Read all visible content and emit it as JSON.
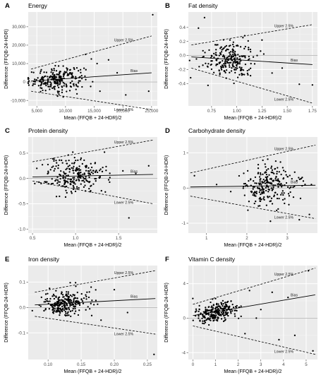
{
  "chart_data": [
    {
      "type": "scatter",
      "panel_letter": "A",
      "title": "Energy",
      "xlabel": "Mean (FFQB + 24-HDR)/2",
      "ylabel": "Difference (FFQB-24-HDR)",
      "xlim": [
        3500,
        26000
      ],
      "ylim": [
        -13000,
        38000
      ],
      "xticks": [
        5000,
        10000,
        15000,
        20000,
        25000
      ],
      "xtick_labels": [
        "5,000",
        "10,000",
        "15,000",
        "20,000",
        "25,000"
      ],
      "yticks": [
        -10000,
        0,
        10000,
        20000,
        30000
      ],
      "ytick_labels": [
        "-10,000",
        "0",
        "10,000",
        "20,000",
        "30,000"
      ],
      "bias": [
        [
          4000,
          500
        ],
        [
          25000,
          5000
        ]
      ],
      "upper": [
        [
          4000,
          7000
        ],
        [
          25000,
          25000
        ]
      ],
      "lower": [
        [
          4000,
          -5000
        ],
        [
          25000,
          -15000
        ]
      ],
      "labels": {
        "upper": "Upper 2.5%",
        "bias": "Bias",
        "lower": "Lower 2.5%"
      },
      "cluster": {
        "cx": 8500,
        "sx": 2400,
        "cy": 1500,
        "sy": 3200,
        "n": 230
      },
      "outliers": [
        [
          25200,
          36500
        ],
        [
          13500,
          15000
        ],
        [
          15500,
          10000
        ],
        [
          17500,
          12000
        ],
        [
          19000,
          5000
        ],
        [
          20500,
          -7000
        ],
        [
          24500,
          -5000
        ],
        [
          16000,
          -5000
        ],
        [
          14500,
          12500
        ]
      ]
    },
    {
      "type": "scatter",
      "panel_letter": "B",
      "title": "Fat density",
      "xlabel": "Mean (FFQB + 24-HDR)/2",
      "ylabel": "Difference (FFQB-24-HDR)",
      "xlim": [
        0.52,
        1.8
      ],
      "ylim": [
        -0.72,
        0.62
      ],
      "xticks": [
        0.75,
        1.0,
        1.25,
        1.5,
        1.75
      ],
      "xtick_labels": [
        "0.75",
        "1.00",
        "1.25",
        "1.50",
        "1.75"
      ],
      "yticks": [
        -0.4,
        -0.2,
        0.0,
        0.2,
        0.4
      ],
      "ytick_labels": [
        "-0.4",
        "-0.2",
        "0.0",
        "0.2",
        "0.4"
      ],
      "bias": [
        [
          0.55,
          -0.02
        ],
        [
          1.75,
          -0.13
        ]
      ],
      "upper": [
        [
          0.55,
          0.15
        ],
        [
          1.75,
          0.44
        ]
      ],
      "lower": [
        [
          0.55,
          -0.18
        ],
        [
          1.75,
          -0.68
        ]
      ],
      "labels": {
        "upper": "Upper 2.5%",
        "bias": "Bias",
        "lower": "Lower 2.5%"
      },
      "cluster": {
        "cx": 0.93,
        "sx": 0.12,
        "cy": -0.04,
        "sy": 0.13,
        "n": 230
      },
      "outliers": [
        [
          0.62,
          0.39
        ],
        [
          0.68,
          0.54
        ],
        [
          1.62,
          -0.41
        ],
        [
          1.75,
          -0.42
        ],
        [
          1.35,
          -0.25
        ],
        [
          1.45,
          -0.18
        ],
        [
          0.6,
          -0.05
        ],
        [
          1.25,
          0.22
        ]
      ]
    },
    {
      "type": "scatter",
      "panel_letter": "C",
      "title": "Protein density",
      "xlabel": "Mean (FFQB + 24-HDR)/2",
      "ylabel": "Difference (FFQB-24-HDR)",
      "xlim": [
        0.45,
        1.95
      ],
      "ylim": [
        -1.08,
        0.82
      ],
      "xticks": [
        0.5,
        1.0,
        1.5
      ],
      "xtick_labels": [
        "0.5",
        "1.0",
        "1.5"
      ],
      "yticks": [
        -1.0,
        -0.5,
        0.0,
        0.5
      ],
      "ytick_labels": [
        "-1.0",
        "-0.5",
        "0.0",
        "0.5"
      ],
      "bias": [
        [
          0.5,
          0.03
        ],
        [
          1.9,
          0.08
        ]
      ],
      "upper": [
        [
          0.5,
          0.33
        ],
        [
          1.9,
          0.76
        ]
      ],
      "lower": [
        [
          0.5,
          -0.05
        ],
        [
          1.9,
          -0.5
        ]
      ],
      "labels": {
        "upper": "Upper 2.5%",
        "bias": "Bias",
        "lower": "Lower 2.5%"
      },
      "cluster": {
        "cx": 1.0,
        "sx": 0.18,
        "cy": 0.04,
        "sy": 0.18,
        "n": 250
      },
      "outliers": [
        [
          1.62,
          -0.78
        ],
        [
          0.55,
          0.2
        ],
        [
          1.85,
          0.25
        ],
        [
          1.7,
          0.1
        ],
        [
          0.6,
          -0.1
        ],
        [
          1.55,
          0.15
        ]
      ]
    },
    {
      "type": "scatter",
      "panel_letter": "D",
      "title": "Carbohydrate density",
      "xlabel": "Mean (FFQB + 24-HDR)/2",
      "ylabel": "Difference (FFQB-24-HDR)",
      "xlim": [
        0.55,
        3.75
      ],
      "ylim": [
        -1.28,
        1.45
      ],
      "xticks": [
        1,
        2,
        3
      ],
      "xtick_labels": [
        "1",
        "2",
        "3"
      ],
      "yticks": [
        -1,
        0,
        1
      ],
      "ytick_labels": [
        "-1",
        "0",
        "1"
      ],
      "bias": [
        [
          0.6,
          0.03
        ],
        [
          3.7,
          0.08
        ]
      ],
      "upper": [
        [
          0.6,
          0.43
        ],
        [
          3.7,
          1.22
        ]
      ],
      "lower": [
        [
          0.6,
          -0.23
        ],
        [
          3.7,
          -0.87
        ]
      ],
      "labels": {
        "upper": "Upper 2.5%",
        "bias": "Bias",
        "lower": "Lower 2.5%"
      },
      "cluster": {
        "cx": 2.55,
        "sx": 0.32,
        "cy": 0.04,
        "sy": 0.3,
        "n": 240
      },
      "outliers": [
        [
          0.7,
          0.35
        ],
        [
          1.25,
          0.1
        ],
        [
          3.55,
          -0.75
        ],
        [
          3.6,
          0.1
        ],
        [
          1.6,
          -0.1
        ],
        [
          3.3,
          -0.9
        ]
      ]
    },
    {
      "type": "scatter",
      "panel_letter": "E",
      "title": "Iron density",
      "xlabel": "Mean (FFQB + 24-HDR)/2",
      "ylabel": "Difference (FFQB-24-HDR)",
      "xlim": [
        0.07,
        0.265
      ],
      "ylim": [
        -0.205,
        0.165
      ],
      "xticks": [
        0.1,
        0.15,
        0.2,
        0.25
      ],
      "xtick_labels": [
        "0.10",
        "0.15",
        "0.20",
        "0.25"
      ],
      "yticks": [
        -0.1,
        0.0,
        0.1
      ],
      "ytick_labels": [
        "-0.1",
        "0.0",
        "0.1"
      ],
      "bias": [
        [
          0.08,
          0.01
        ],
        [
          0.262,
          0.035
        ]
      ],
      "upper": [
        [
          0.08,
          0.06
        ],
        [
          0.262,
          0.145
        ]
      ],
      "lower": [
        [
          0.08,
          -0.035
        ],
        [
          0.262,
          -0.105
        ]
      ],
      "labels": {
        "upper": "Upper 2.5%",
        "bias": "Bias",
        "lower": "Lower 2.5%"
      },
      "cluster": {
        "cx": 0.125,
        "sx": 0.017,
        "cy": 0.02,
        "sy": 0.025,
        "n": 260
      },
      "outliers": [
        [
          0.26,
          -0.185
        ],
        [
          0.22,
          -0.02
        ],
        [
          0.2,
          0.07
        ],
        [
          0.18,
          -0.05
        ],
        [
          0.09,
          0.04
        ],
        [
          0.165,
          0.08
        ]
      ]
    },
    {
      "type": "scatter",
      "panel_letter": "F",
      "title": "Vitamin C density",
      "xlabel": "Mean (FFQB + 24-HDR)/2",
      "ylabel": "Difference (FFQB-24-HDR)",
      "xlim": [
        -0.2,
        5.5
      ],
      "ylim": [
        -4.8,
        6.1
      ],
      "xticks": [
        0,
        1,
        2,
        3,
        4,
        5
      ],
      "xtick_labels": [
        "0",
        "1",
        "2",
        "3",
        "4",
        "5"
      ],
      "yticks": [
        -4,
        0,
        4
      ],
      "ytick_labels": [
        "-4",
        "0",
        "4"
      ],
      "bias": [
        [
          0,
          0.3
        ],
        [
          5.4,
          2.7
        ]
      ],
      "upper": [
        [
          0,
          1.6
        ],
        [
          5.4,
          5.8
        ]
      ],
      "lower": [
        [
          0,
          -0.9
        ],
        [
          5.4,
          -4.2
        ]
      ],
      "labels": {
        "upper": "Upper 2.5%",
        "bias": "Bias",
        "lower": "Lower 2.5%"
      },
      "cluster": {
        "cx": 1.0,
        "sx": 0.45,
        "cy": 0.5,
        "sy": 0.55,
        "n": 240
      },
      "outliers": [
        [
          5.1,
          5.5
        ],
        [
          5.3,
          -3.8
        ],
        [
          4.2,
          2.4
        ],
        [
          3.5,
          3.0
        ],
        [
          3.8,
          -2.5
        ],
        [
          2.5,
          3.2
        ],
        [
          2.3,
          -1.8
        ],
        [
          3.0,
          1.0
        ],
        [
          4.5,
          -2.0
        ],
        [
          2.8,
          0.0
        ]
      ]
    }
  ]
}
